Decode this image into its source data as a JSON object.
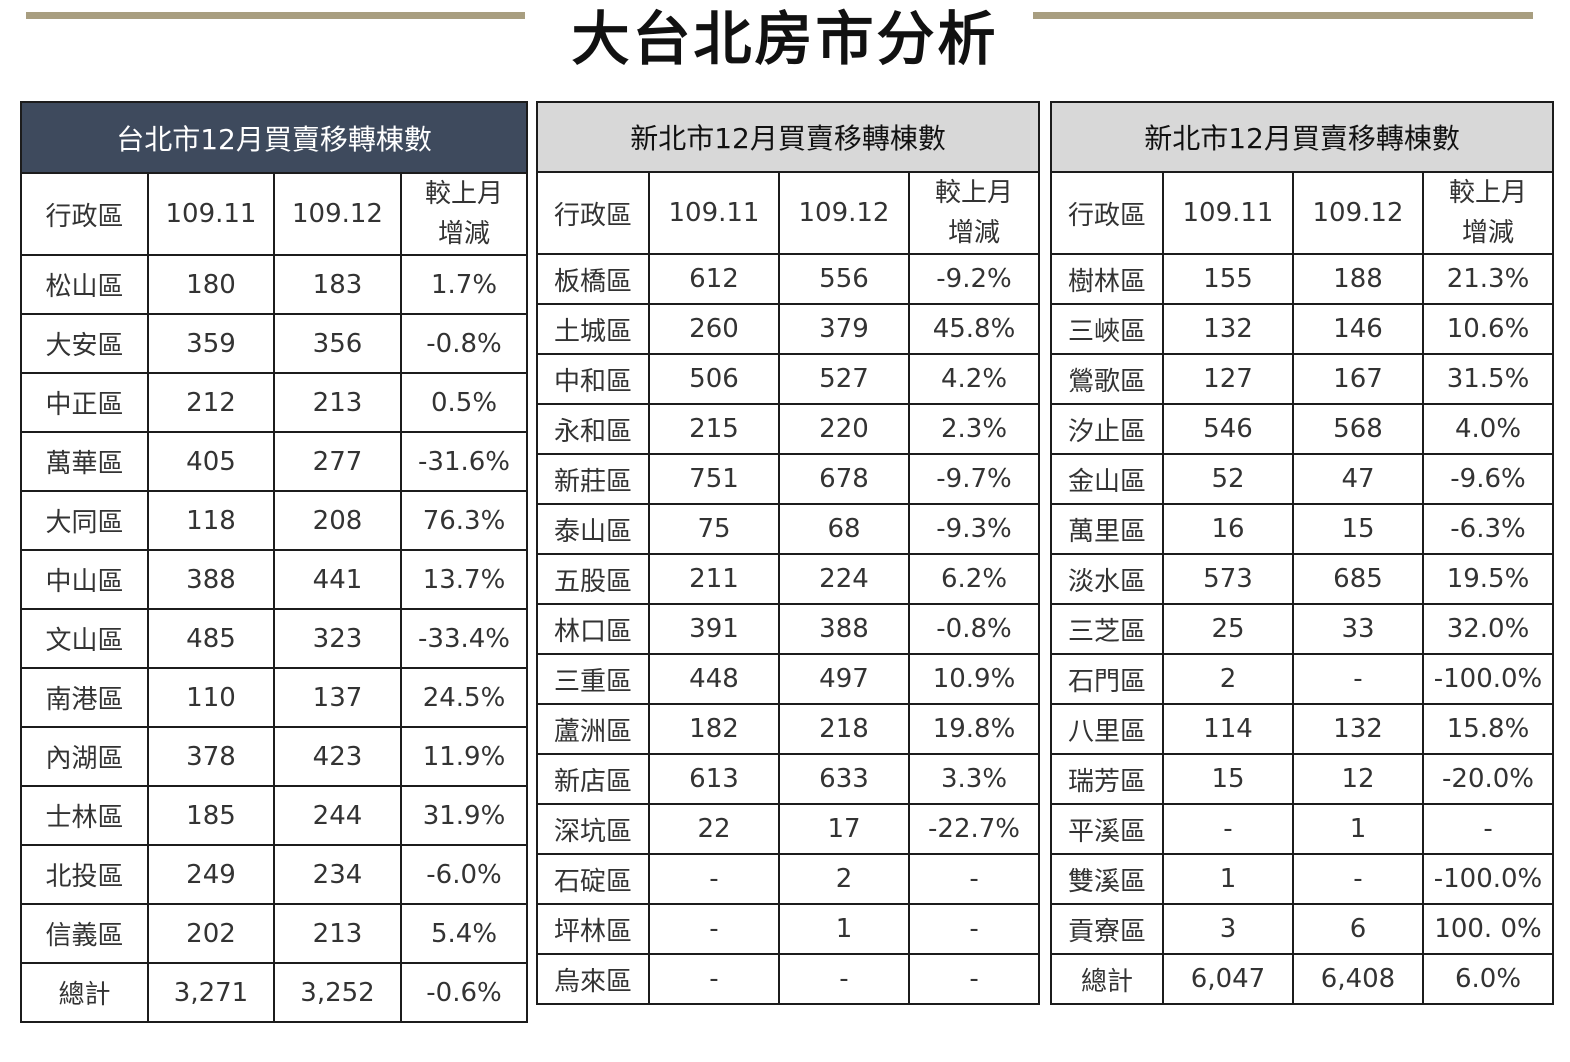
{
  "page": {
    "title": "大台北房市分析"
  },
  "tables": [
    {
      "title": "台北市12月買賣移轉棟數",
      "headers": [
        "行政區",
        "109.11",
        "109.12",
        "較上月\n增減"
      ],
      "rows": [
        [
          "松山區",
          "180",
          "183",
          "1.7%"
        ],
        [
          "大安區",
          "359",
          "356",
          "-0.8%"
        ],
        [
          "中正區",
          "212",
          "213",
          "0.5%"
        ],
        [
          "萬華區",
          "405",
          "277",
          "-31.6%"
        ],
        [
          "大同區",
          "118",
          "208",
          "76.3%"
        ],
        [
          "中山區",
          "388",
          "441",
          "13.7%"
        ],
        [
          "文山區",
          "485",
          "323",
          "-33.4%"
        ],
        [
          "南港區",
          "110",
          "137",
          "24.5%"
        ],
        [
          "內湖區",
          "378",
          "423",
          "11.9%"
        ],
        [
          "士林區",
          "185",
          "244",
          "31.9%"
        ],
        [
          "北投區",
          "249",
          "234",
          "-6.0%"
        ],
        [
          "信義區",
          "202",
          "213",
          "5.4%"
        ],
        [
          "總計",
          "3,271",
          "3,252",
          "-0.6%"
        ]
      ]
    },
    {
      "title": "新北市12月買賣移轉棟數",
      "headers": [
        "行政區",
        "109.11",
        "109.12",
        "較上月\n增減"
      ],
      "rows": [
        [
          "板橋區",
          "612",
          "556",
          "-9.2%"
        ],
        [
          "土城區",
          "260",
          "379",
          "45.8%"
        ],
        [
          "中和區",
          "506",
          "527",
          "4.2%"
        ],
        [
          "永和區",
          "215",
          "220",
          "2.3%"
        ],
        [
          "新莊區",
          "751",
          "678",
          "-9.7%"
        ],
        [
          "泰山區",
          "75",
          "68",
          "-9.3%"
        ],
        [
          "五股區",
          "211",
          "224",
          "6.2%"
        ],
        [
          "林口區",
          "391",
          "388",
          "-0.8%"
        ],
        [
          "三重區",
          "448",
          "497",
          "10.9%"
        ],
        [
          "蘆洲區",
          "182",
          "218",
          "19.8%"
        ],
        [
          "新店區",
          "613",
          "633",
          "3.3%"
        ],
        [
          "深坑區",
          "22",
          "17",
          "-22.7%"
        ],
        [
          "石碇區",
          "-",
          "2",
          "-"
        ],
        [
          "坪林區",
          "-",
          "1",
          "-"
        ],
        [
          "烏來區",
          "-",
          "-",
          "-"
        ]
      ]
    },
    {
      "title": "新北市12月買賣移轉棟數",
      "headers": [
        "行政區",
        "109.11",
        "109.12",
        "較上月\n增減"
      ],
      "rows": [
        [
          "樹林區",
          "155",
          "188",
          "21.3%"
        ],
        [
          "三峽區",
          "132",
          "146",
          "10.6%"
        ],
        [
          "鶯歌區",
          "127",
          "167",
          "31.5%"
        ],
        [
          "汐止區",
          "546",
          "568",
          "4.0%"
        ],
        [
          "金山區",
          "52",
          "47",
          "-9.6%"
        ],
        [
          "萬里區",
          "16",
          "15",
          "-6.3%"
        ],
        [
          "淡水區",
          "573",
          "685",
          "19.5%"
        ],
        [
          "三芝區",
          "25",
          "33",
          "32.0%"
        ],
        [
          "石門區",
          "2",
          "-",
          "-100.0%"
        ],
        [
          "八里區",
          "114",
          "132",
          "15.8%"
        ],
        [
          "瑞芳區",
          "15",
          "12",
          "-20.0%"
        ],
        [
          "平溪區",
          "-",
          "1",
          "-"
        ],
        [
          "雙溪區",
          "1",
          "-",
          "-100.0%"
        ],
        [
          "貢寮區",
          "3",
          "6",
          "100. 0%"
        ],
        [
          "總計",
          "6,047",
          "6,408",
          "6.0%"
        ]
      ]
    }
  ]
}
